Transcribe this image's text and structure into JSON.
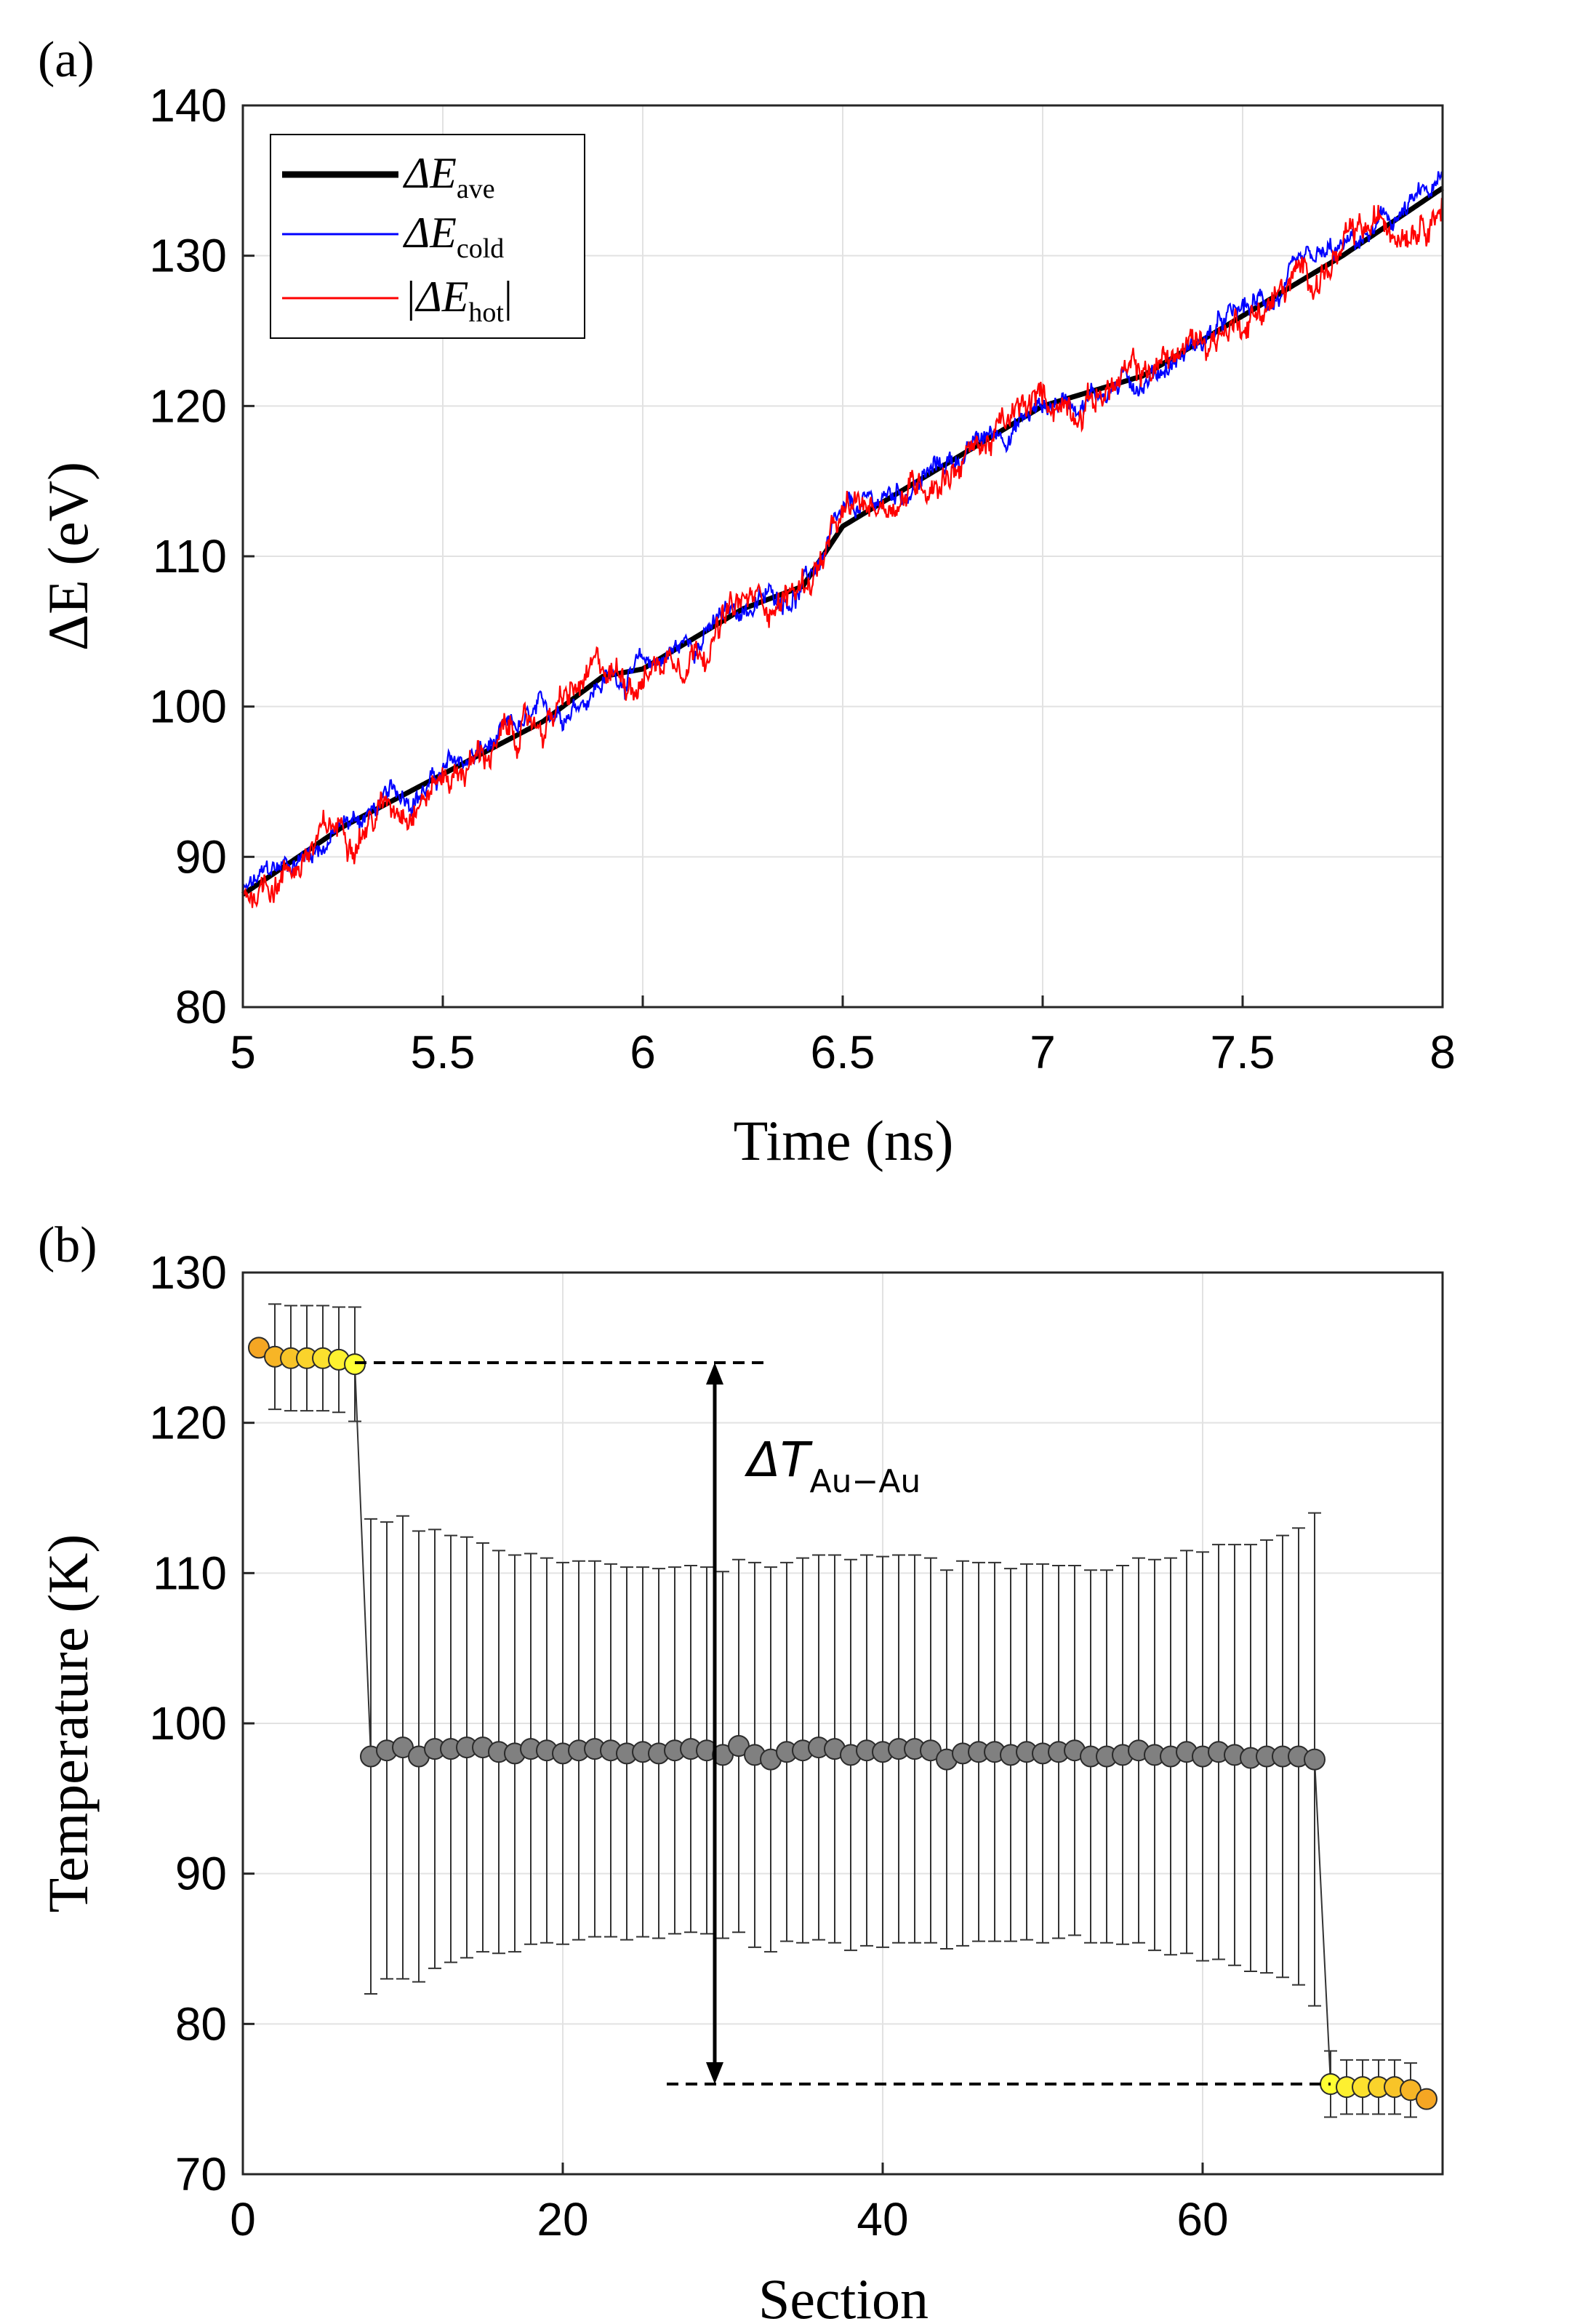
{
  "chart_data": [
    {
      "panel_label": "(a)",
      "type": "line",
      "xlabel": "Time (ns)",
      "ylabel": "ΔE (eV)",
      "xlim": [
        5,
        8
      ],
      "ylim": [
        80,
        140
      ],
      "xticks": [
        "5",
        "5.5",
        "6",
        "6.5",
        "7",
        "7.5",
        "8"
      ],
      "yticks": [
        "80",
        "90",
        "100",
        "110",
        "120",
        "130",
        "140"
      ],
      "grid": true,
      "legend": {
        "placement": "top-left",
        "entries": [
          {
            "symbol": "ΔE",
            "subscript": "ave",
            "color": "#000000"
          },
          {
            "symbol": "ΔE",
            "subscript": "cold",
            "color": "#0000ff"
          },
          {
            "symbol": "|ΔE",
            "subscript": "hot",
            "suffix": "|",
            "color": "#ff0000"
          }
        ]
      },
      "series": [
        {
          "name": "ΔE_ave",
          "color": "#000000",
          "x": [
            5.0,
            5.25,
            5.5,
            5.75,
            5.9,
            6.0,
            6.25,
            6.4,
            6.5,
            6.75,
            7.0,
            7.25,
            7.5,
            7.75,
            8.0
          ],
          "y": [
            87.5,
            92.0,
            95.5,
            99.0,
            102.0,
            102.5,
            106.5,
            108.0,
            112.0,
            116.0,
            120.0,
            122.0,
            126.0,
            130.0,
            134.5
          ]
        },
        {
          "name": "ΔE_cold",
          "color": "#0000ff",
          "noise_amplitude": 0.8
        },
        {
          "name": "|ΔE_hot|",
          "color": "#ff0000",
          "noise_amplitude": 1.1
        }
      ]
    },
    {
      "panel_label": "(b)",
      "type": "scatter",
      "xlabel": "Section",
      "ylabel": "Temperature (K)",
      "xlim": [
        0,
        75
      ],
      "ylim": [
        70,
        130
      ],
      "xticks": [
        "0",
        "20",
        "40",
        "60"
      ],
      "yticks": [
        "70",
        "80",
        "90",
        "100",
        "110",
        "120",
        "130"
      ],
      "grid": true,
      "annotation": {
        "symbol": "ΔT",
        "subscript": "Au−Au",
        "top_value": 124.0,
        "bottom_value": 76.0,
        "arrow_x": 29.5
      },
      "colors": {
        "hot_start": "#f5a623",
        "hot_end": "#ffff33",
        "middle": "#808080"
      },
      "hot_bath": {
        "x": [
          1,
          2,
          3,
          4,
          5,
          6,
          7
        ],
        "y": [
          125.0,
          124.4,
          124.3,
          124.3,
          124.3,
          124.2,
          123.9
        ],
        "err": [
          0,
          3.5,
          3.5,
          3.5,
          3.5,
          3.5,
          3.8
        ]
      },
      "middle": {
        "x_start": 8,
        "y": [
          97.8,
          98.2,
          98.4,
          97.8,
          98.3,
          98.3,
          98.4,
          98.4,
          98.1,
          98.0,
          98.3,
          98.2,
          98.0,
          98.2,
          98.3,
          98.2,
          98.0,
          98.1,
          98.0,
          98.2,
          98.3,
          98.2,
          97.9,
          98.5,
          97.9,
          97.6,
          98.1,
          98.2,
          98.4,
          98.3,
          97.9,
          98.2,
          98.1,
          98.3,
          98.3,
          98.2,
          97.6,
          98.0,
          98.1,
          98.1,
          97.9,
          98.1,
          98.0,
          98.1,
          98.2,
          97.8,
          97.8,
          97.9,
          98.2,
          97.9,
          97.8,
          98.1,
          97.8,
          98.1,
          97.9,
          97.7,
          97.8,
          97.8,
          97.8,
          97.6
        ],
        "err": [
          15.8,
          15.2,
          15.4,
          15.0,
          14.6,
          14.2,
          14.0,
          13.6,
          13.4,
          13.2,
          13.0,
          12.8,
          12.7,
          12.6,
          12.5,
          12.4,
          12.4,
          12.3,
          12.3,
          12.2,
          12.2,
          12.2,
          12.2,
          12.4,
          12.8,
          12.8,
          12.6,
          12.8,
          12.8,
          12.9,
          13.0,
          13.0,
          13.0,
          12.9,
          12.9,
          12.8,
          12.6,
          12.8,
          12.6,
          12.6,
          12.4,
          12.5,
          12.6,
          12.4,
          12.3,
          12.4,
          12.4,
          12.6,
          12.8,
          13.0,
          13.2,
          13.4,
          13.6,
          13.8,
          14.0,
          14.2,
          14.4,
          14.7,
          15.2,
          16.4
        ]
      },
      "cold_bath": {
        "x": [
          68,
          69,
          70,
          71,
          72,
          73,
          74
        ],
        "y": [
          76.0,
          75.8,
          75.8,
          75.8,
          75.8,
          75.6,
          75.0
        ],
        "err": [
          2.2,
          1.8,
          1.8,
          1.8,
          1.8,
          1.8,
          0
        ]
      }
    }
  ]
}
